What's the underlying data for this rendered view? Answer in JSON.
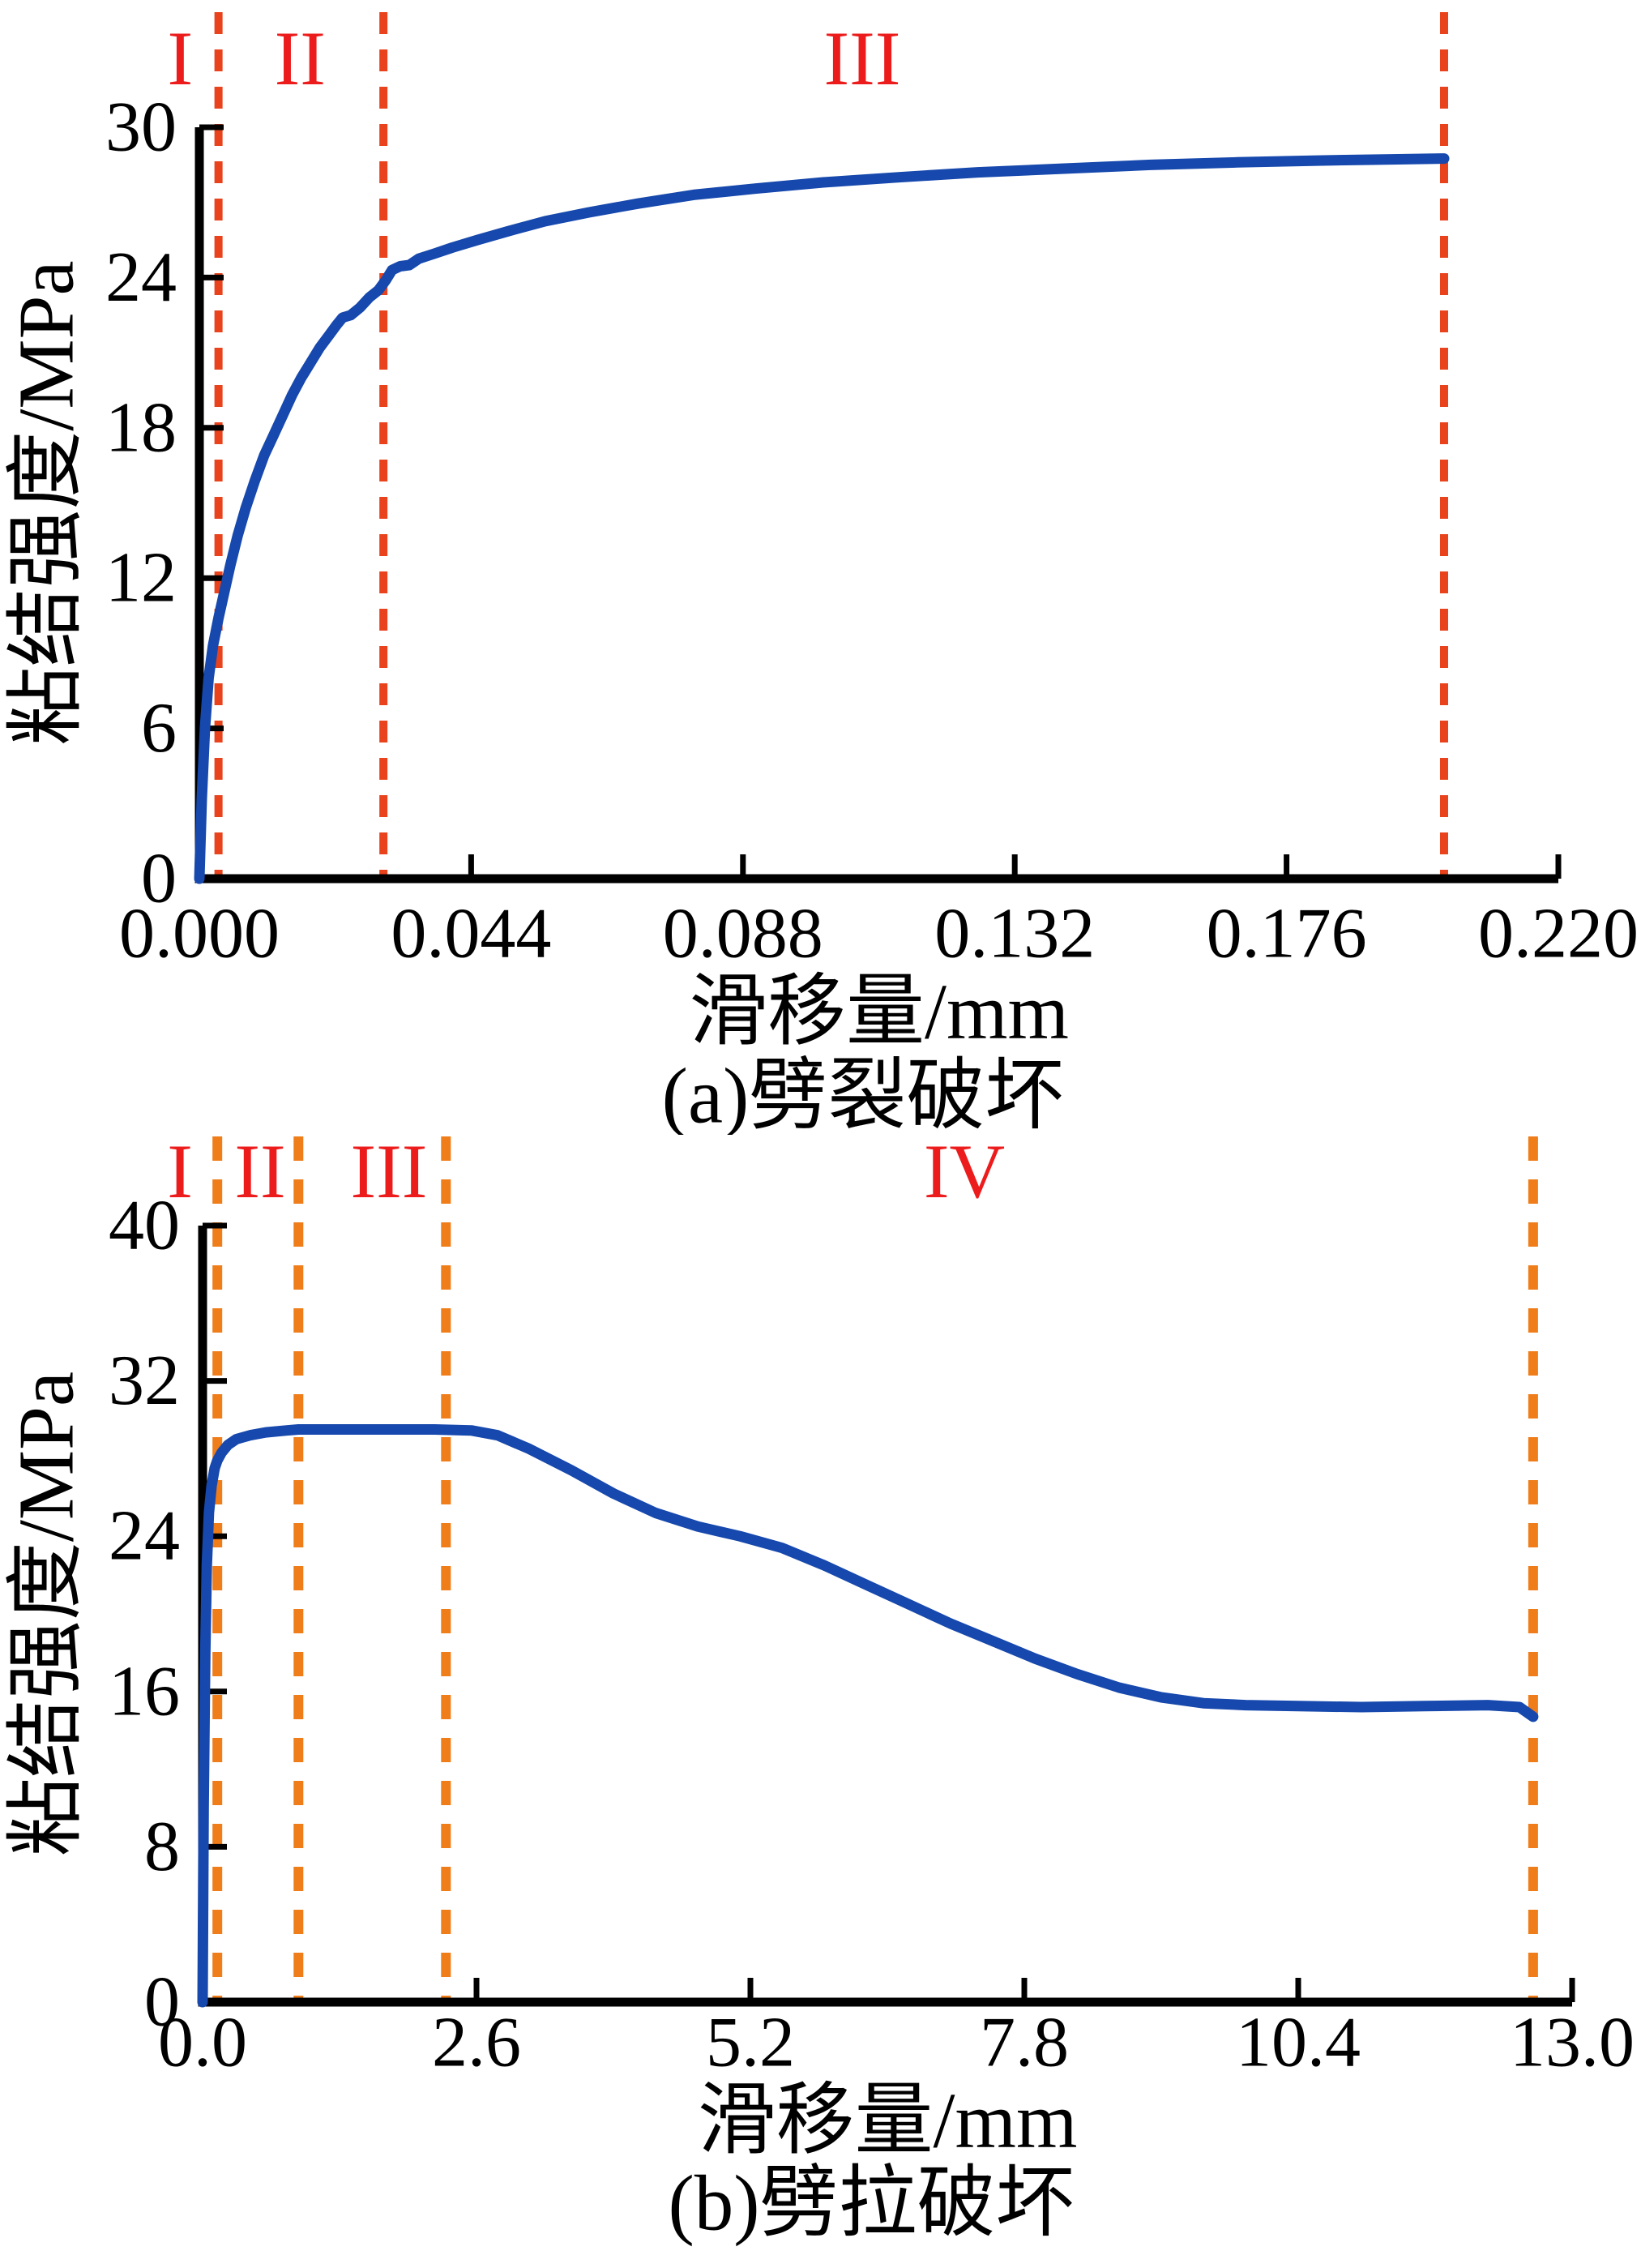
{
  "figure": {
    "background": "#ffffff",
    "description_visible_text_only": true
  },
  "chart_data": [
    {
      "type": "line",
      "caption": "(a)劈裂破坏",
      "xlabel": "滑移量/mm",
      "ylabel": "粘结强度/MPa",
      "xlim": [
        0,
        0.22
      ],
      "ylim": [
        0,
        30
      ],
      "xticks": [
        0,
        0.044,
        0.088,
        0.132,
        0.176,
        0.22
      ],
      "xtick_labels": [
        "0.000",
        "0.044",
        "0.088",
        "0.132",
        "0.176",
        "0.220"
      ],
      "yticks": [
        0,
        6,
        12,
        18,
        24,
        30
      ],
      "ytick_labels": [
        "0",
        "6",
        "12",
        "18",
        "24",
        "30"
      ],
      "grid": false,
      "legend": false,
      "axis_color": "#000000",
      "series": [
        {
          "name": "bond-strength-slip-curve",
          "color": "#1648ad",
          "points": [
            [
              0,
              0
            ],
            [
              0.0004,
              3.2
            ],
            [
              0.0009,
              6.0
            ],
            [
              0.0015,
              8.0
            ],
            [
              0.0022,
              9.3
            ],
            [
              0.0031,
              10.4
            ],
            [
              0.004,
              11.4
            ],
            [
              0.005,
              12.5
            ],
            [
              0.0062,
              13.7
            ],
            [
              0.0075,
              14.8
            ],
            [
              0.009,
              15.9
            ],
            [
              0.0105,
              16.9
            ],
            [
              0.012,
              17.7
            ],
            [
              0.0135,
              18.5
            ],
            [
              0.015,
              19.3
            ],
            [
              0.0165,
              20.0
            ],
            [
              0.018,
              20.6
            ],
            [
              0.0195,
              21.2
            ],
            [
              0.021,
              21.7
            ],
            [
              0.0222,
              22.1
            ],
            [
              0.0232,
              22.4
            ],
            [
              0.0245,
              22.5
            ],
            [
              0.026,
              22.8
            ],
            [
              0.0275,
              23.2
            ],
            [
              0.029,
              23.5
            ],
            [
              0.0302,
              23.9
            ],
            [
              0.0312,
              24.3
            ],
            [
              0.0325,
              24.45
            ],
            [
              0.034,
              24.5
            ],
            [
              0.0355,
              24.75
            ],
            [
              0.038,
              24.95
            ],
            [
              0.041,
              25.2
            ],
            [
              0.045,
              25.5
            ],
            [
              0.05,
              25.85
            ],
            [
              0.056,
              26.25
            ],
            [
              0.063,
              26.6
            ],
            [
              0.071,
              26.95
            ],
            [
              0.08,
              27.3
            ],
            [
              0.09,
              27.55
            ],
            [
              0.101,
              27.8
            ],
            [
              0.113,
              28.0
            ],
            [
              0.126,
              28.2
            ],
            [
              0.14,
              28.35
            ],
            [
              0.154,
              28.5
            ],
            [
              0.168,
              28.6
            ],
            [
              0.181,
              28.67
            ],
            [
              0.193,
              28.72
            ],
            [
              0.2015,
              28.75
            ]
          ]
        }
      ],
      "phase_boundaries": {
        "color": "#e8431c",
        "style": "dashed",
        "x": [
          0.0031,
          0.0298,
          0.2015
        ]
      },
      "phase_labels": {
        "color": "#ed1c1c",
        "items": [
          {
            "text": "I",
            "x": -0.0031
          },
          {
            "text": "II",
            "x": 0.0163
          },
          {
            "text": "III",
            "x": 0.1073
          }
        ]
      }
    },
    {
      "type": "line",
      "caption": "(b)劈拉破坏",
      "xlabel": "滑移量/mm",
      "ylabel": "粘结强度/MPa",
      "xlim": [
        0,
        13.0
      ],
      "ylim": [
        0,
        40
      ],
      "xticks": [
        0,
        2.6,
        5.2,
        7.8,
        10.4,
        13.0
      ],
      "xtick_labels": [
        "0.0",
        "2.6",
        "5.2",
        "7.8",
        "10.4",
        "13.0"
      ],
      "yticks": [
        0,
        8,
        16,
        24,
        32,
        40
      ],
      "ytick_labels": [
        "0",
        "8",
        "16",
        "24",
        "32",
        "40"
      ],
      "grid": false,
      "legend": false,
      "axis_color": "#000000",
      "series": [
        {
          "name": "bond-strength-slip-curve",
          "color": "#1648ad",
          "points": [
            [
              0,
              0
            ],
            [
              0.01,
              10
            ],
            [
              0.025,
              18
            ],
            [
              0.04,
              22.5
            ],
            [
              0.06,
              25.2
            ],
            [
              0.085,
              26.6
            ],
            [
              0.115,
              27.5
            ],
            [
              0.14,
              27.9
            ],
            [
              0.18,
              28.3
            ],
            [
              0.24,
              28.7
            ],
            [
              0.32,
              29.0
            ],
            [
              0.45,
              29.2
            ],
            [
              0.6,
              29.35
            ],
            [
              0.8,
              29.45
            ],
            [
              0.91,
              29.5
            ],
            [
              1.1,
              29.5
            ],
            [
              1.4,
              29.5
            ],
            [
              1.8,
              29.5
            ],
            [
              2.2,
              29.5
            ],
            [
              2.55,
              29.45
            ],
            [
              2.8,
              29.2
            ],
            [
              3.1,
              28.5
            ],
            [
              3.5,
              27.4
            ],
            [
              3.9,
              26.2
            ],
            [
              4.3,
              25.2
            ],
            [
              4.7,
              24.5
            ],
            [
              5.1,
              24.0
            ],
            [
              5.5,
              23.4
            ],
            [
              5.9,
              22.5
            ],
            [
              6.3,
              21.5
            ],
            [
              6.7,
              20.5
            ],
            [
              7.1,
              19.5
            ],
            [
              7.5,
              18.6
            ],
            [
              7.9,
              17.7
            ],
            [
              8.3,
              16.9
            ],
            [
              8.7,
              16.2
            ],
            [
              9.1,
              15.7
            ],
            [
              9.5,
              15.4
            ],
            [
              9.9,
              15.3
            ],
            [
              10.4,
              15.25
            ],
            [
              11.0,
              15.2
            ],
            [
              11.6,
              15.25
            ],
            [
              12.2,
              15.3
            ],
            [
              12.5,
              15.2
            ],
            [
              12.63,
              14.7
            ]
          ]
        }
      ],
      "phase_boundaries": {
        "color": "#ef7d1a",
        "style": "dashed",
        "x": [
          0.14,
          0.91,
          2.31,
          12.63
        ]
      },
      "phase_labels": {
        "color": "#ed1c1c",
        "items": [
          {
            "text": "I",
            "x": -0.215
          },
          {
            "text": "II",
            "x": 0.546
          },
          {
            "text": "III",
            "x": 1.769
          },
          {
            "text": "IV",
            "x": 7.231
          }
        ]
      }
    }
  ]
}
